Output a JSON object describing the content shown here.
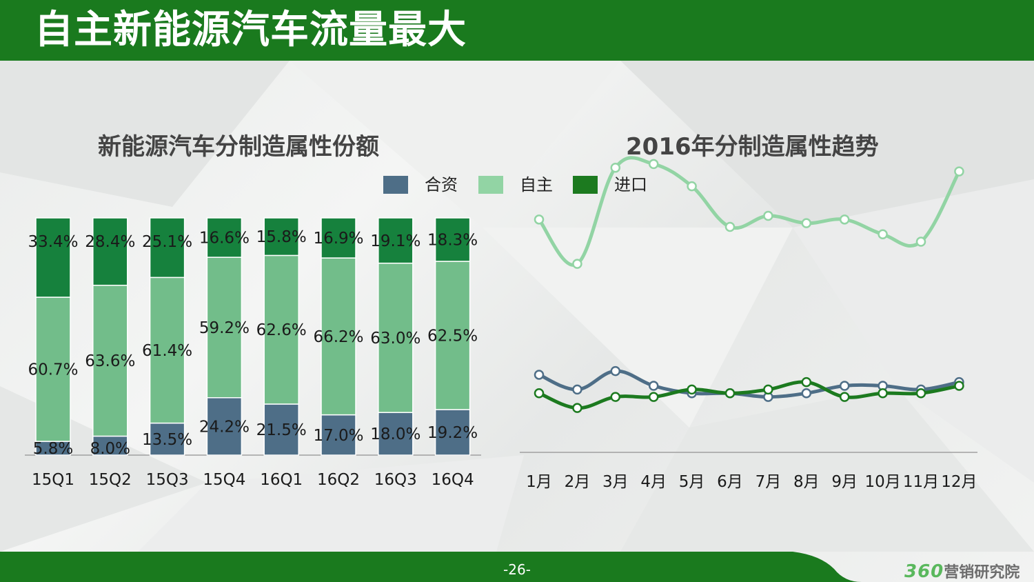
{
  "header": {
    "title": "自主新能源汽车流量最大"
  },
  "footer": {
    "page_number": "-26-",
    "logo_number": "360",
    "logo_text": "营销研究院"
  },
  "colors": {
    "header_green": "#1a7a1e",
    "hezi": "#4e6e87",
    "zizhu_bar": "#72bd8a",
    "zizhu_line": "#92d4a4",
    "jinkou_bar": "#16813d",
    "jinkou_line": "#1c7a1f"
  },
  "legend": [
    {
      "name": "合资",
      "color": "#4e6e87"
    },
    {
      "name": "自主",
      "color": "#92d4a4"
    },
    {
      "name": "进口",
      "color": "#1c7a1f"
    }
  ],
  "chart_data": [
    {
      "type": "bar",
      "stacked": true,
      "title": "新能源汽车分制造属性份额",
      "categories": [
        "15Q1",
        "15Q2",
        "15Q3",
        "15Q4",
        "16Q1",
        "16Q2",
        "16Q3",
        "16Q4"
      ],
      "series": [
        {
          "name": "合资",
          "values": [
            5.8,
            8.0,
            13.5,
            24.2,
            21.5,
            17.0,
            18.0,
            19.2
          ],
          "labels": [
            "5.8%",
            "8.0%",
            "13.5%",
            "24.2%",
            "21.5%",
            "17.0%",
            "18.0%",
            "19.2%"
          ]
        },
        {
          "name": "自主",
          "values": [
            60.7,
            63.6,
            61.4,
            59.2,
            62.6,
            66.2,
            63.0,
            62.5
          ],
          "labels": [
            "60.7%",
            "63.6%",
            "61.4%",
            "59.2%",
            "62.6%",
            "66.2%",
            "63.0%",
            "62.5%"
          ]
        },
        {
          "name": "进口",
          "values": [
            33.4,
            28.4,
            25.1,
            16.6,
            15.8,
            16.9,
            19.1,
            18.3
          ],
          "labels": [
            "33.4%",
            "28.4%",
            "25.1%",
            "16.6%",
            "15.8%",
            "16.9%",
            "19.1%",
            "18.3%"
          ]
        }
      ],
      "ylim": [
        0,
        100
      ]
    },
    {
      "type": "line",
      "title": "2016年分制造属性趋势",
      "categories": [
        "1月",
        "2月",
        "3月",
        "4月",
        "5月",
        "6月",
        "7月",
        "8月",
        "9月",
        "10月",
        "11月",
        "12月"
      ],
      "series": [
        {
          "name": "自主",
          "values": [
            63,
            51,
            77,
            78,
            72,
            61,
            64,
            62,
            63,
            59,
            57,
            76
          ]
        },
        {
          "name": "合资",
          "values": [
            21,
            17,
            22,
            18,
            16,
            16,
            15,
            16,
            18,
            18,
            17,
            19
          ]
        },
        {
          "name": "进口",
          "values": [
            16,
            12,
            15,
            15,
            17,
            16,
            17,
            19,
            15,
            16,
            16,
            18
          ]
        }
      ],
      "ylim": [
        0,
        100
      ]
    }
  ]
}
